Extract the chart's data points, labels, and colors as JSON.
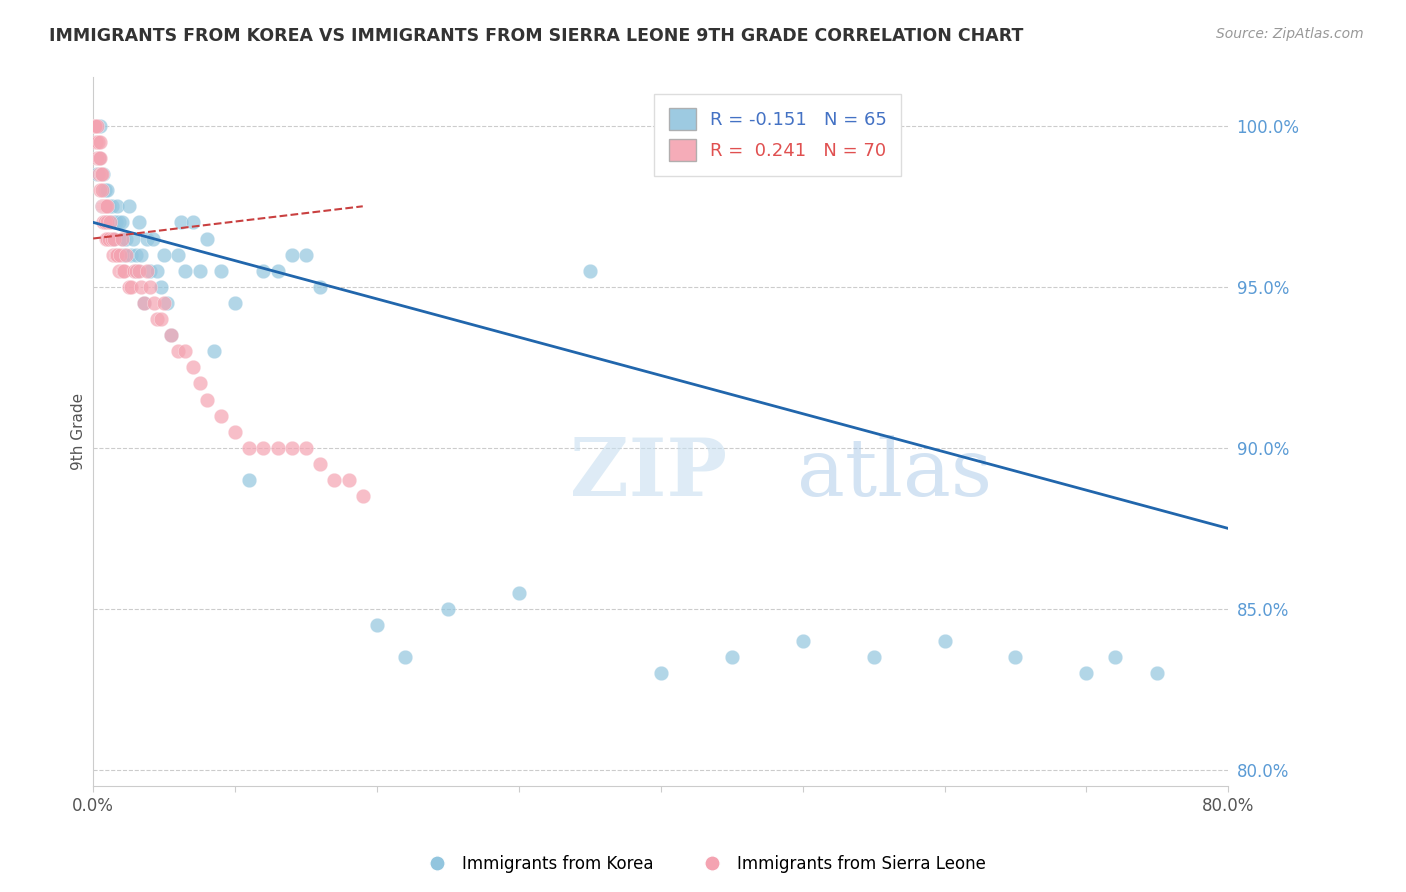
{
  "title": "IMMIGRANTS FROM KOREA VS IMMIGRANTS FROM SIERRA LEONE 9TH GRADE CORRELATION CHART",
  "source": "Source: ZipAtlas.com",
  "ylabel": "9th Grade",
  "ylabel_right_ticks": [
    100.0,
    95.0,
    90.0,
    85.0,
    80.0
  ],
  "ylabel_right_labels": [
    "100.0%",
    "95.0%",
    "90.0%",
    "85.0%",
    "80.0%"
  ],
  "xlim": [
    0.0,
    80.0
  ],
  "ylim": [
    79.5,
    101.5
  ],
  "korea_R": -0.151,
  "korea_N": 65,
  "sierra_R": 0.241,
  "sierra_N": 70,
  "korea_color": "#92c5de",
  "sierra_color": "#f4a3b1",
  "trend_korea_color": "#2166ac",
  "trend_sierra_color": "#c94040",
  "legend_label_korea": "Immigrants from Korea",
  "legend_label_sierra": "Immigrants from Sierra Leone",
  "watermark_zip": "ZIP",
  "watermark_atlas": "atlas",
  "korea_x": [
    0.3,
    0.4,
    0.5,
    0.6,
    0.7,
    0.8,
    0.9,
    1.0,
    1.1,
    1.2,
    1.3,
    1.4,
    1.5,
    1.6,
    1.7,
    1.8,
    2.0,
    2.1,
    2.2,
    2.3,
    2.5,
    2.7,
    2.8,
    3.0,
    3.1,
    3.2,
    3.4,
    3.6,
    3.8,
    4.0,
    4.2,
    4.5,
    4.8,
    5.0,
    5.2,
    5.5,
    6.0,
    6.2,
    6.5,
    7.0,
    7.5,
    8.0,
    8.5,
    9.0,
    10.0,
    11.0,
    12.0,
    13.0,
    14.0,
    15.0,
    16.0,
    20.0,
    22.0,
    25.0,
    30.0,
    35.0,
    40.0,
    45.0,
    50.0,
    55.0,
    60.0,
    65.0,
    70.0,
    72.0,
    75.0
  ],
  "korea_y": [
    98.5,
    99.0,
    100.0,
    97.5,
    98.5,
    98.0,
    97.0,
    98.0,
    97.5,
    97.0,
    97.5,
    96.5,
    97.0,
    97.0,
    97.5,
    97.0,
    97.0,
    96.5,
    96.0,
    96.5,
    97.5,
    96.0,
    96.5,
    96.0,
    95.5,
    97.0,
    96.0,
    94.5,
    96.5,
    95.5,
    96.5,
    95.5,
    95.0,
    96.0,
    94.5,
    93.5,
    96.0,
    97.0,
    95.5,
    97.0,
    95.5,
    96.5,
    93.0,
    95.5,
    94.5,
    89.0,
    95.5,
    95.5,
    96.0,
    96.0,
    95.0,
    84.5,
    83.5,
    85.0,
    85.5,
    95.5,
    83.0,
    83.5,
    84.0,
    83.5,
    84.0,
    83.5,
    83.0,
    83.5,
    83.0
  ],
  "sierra_x": [
    0.05,
    0.1,
    0.15,
    0.2,
    0.25,
    0.3,
    0.35,
    0.4,
    0.4,
    0.45,
    0.5,
    0.5,
    0.55,
    0.6,
    0.6,
    0.65,
    0.7,
    0.7,
    0.75,
    0.8,
    0.8,
    0.85,
    0.9,
    0.9,
    0.95,
    1.0,
    1.0,
    1.1,
    1.2,
    1.3,
    1.4,
    1.5,
    1.6,
    1.7,
    1.8,
    1.9,
    2.0,
    2.1,
    2.2,
    2.3,
    2.5,
    2.7,
    2.9,
    3.0,
    3.2,
    3.4,
    3.6,
    3.8,
    4.0,
    4.3,
    4.5,
    4.8,
    5.0,
    5.5,
    6.0,
    6.5,
    7.0,
    7.5,
    8.0,
    9.0,
    10.0,
    11.0,
    12.0,
    13.0,
    14.0,
    15.0,
    16.0,
    17.0,
    18.0,
    19.0
  ],
  "sierra_y": [
    100.0,
    100.0,
    100.0,
    99.5,
    99.0,
    100.0,
    99.5,
    99.0,
    98.5,
    99.5,
    99.0,
    98.0,
    98.5,
    98.0,
    97.5,
    98.5,
    97.5,
    97.0,
    97.5,
    97.5,
    97.0,
    97.0,
    96.5,
    97.5,
    97.5,
    97.0,
    96.5,
    96.5,
    97.0,
    96.5,
    96.0,
    96.5,
    96.0,
    96.0,
    95.5,
    96.0,
    96.5,
    95.5,
    95.5,
    96.0,
    95.0,
    95.0,
    95.5,
    95.5,
    95.5,
    95.0,
    94.5,
    95.5,
    95.0,
    94.5,
    94.0,
    94.0,
    94.5,
    93.5,
    93.0,
    93.0,
    92.5,
    92.0,
    91.5,
    91.0,
    90.5,
    90.0,
    90.0,
    90.0,
    90.0,
    90.0,
    89.5,
    89.0,
    89.0,
    88.5
  ],
  "trend_korea_x0": 0.0,
  "trend_korea_y0": 97.0,
  "trend_korea_x1": 80.0,
  "trend_korea_y1": 87.5,
  "trend_sierra_x0": 0.0,
  "trend_sierra_y0": 96.5,
  "trend_sierra_x1": 19.0,
  "trend_sierra_y1": 97.5
}
